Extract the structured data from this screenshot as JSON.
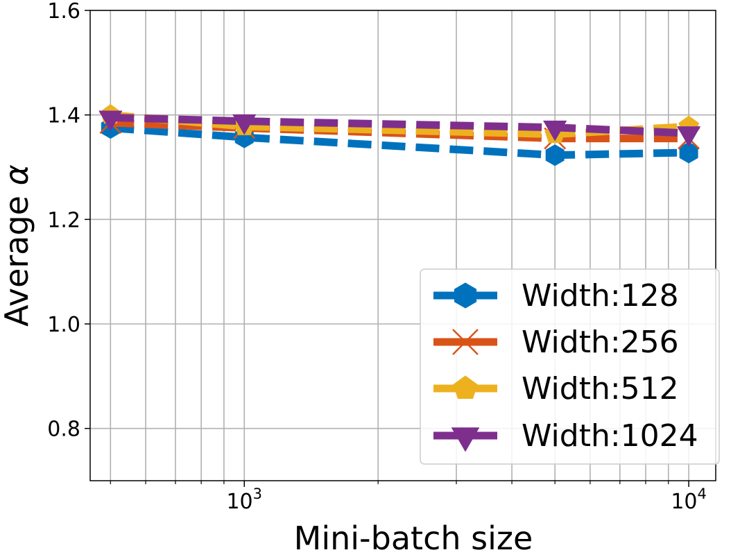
{
  "chart_data": {
    "type": "line",
    "title": "",
    "xlabel": "Mini-batch size",
    "ylabel_prefix": "Average ",
    "ylabel_symbol": "α",
    "xscale": "log",
    "xlim": [
      450,
      11500
    ],
    "ylim": [
      0.7,
      1.6
    ],
    "grid": true,
    "legend_position": "lower-right",
    "x": [
      500,
      1000,
      5000,
      10000
    ],
    "y_ticks": [
      {
        "value": 0.8,
        "label": "0.8"
      },
      {
        "value": 1.0,
        "label": "1.0"
      },
      {
        "value": 1.2,
        "label": "1.2"
      },
      {
        "value": 1.4,
        "label": "1.4"
      },
      {
        "value": 1.6,
        "label": "1.6"
      }
    ],
    "x_major_ticks": [
      {
        "value": 1000,
        "base": "10",
        "exp": "3"
      },
      {
        "value": 10000,
        "base": "10",
        "exp": "4"
      }
    ],
    "x_minor_ticks": [
      500,
      600,
      700,
      800,
      900,
      2000,
      3000,
      4000,
      5000,
      6000,
      7000,
      8000,
      9000
    ],
    "series": [
      {
        "name": "Width:128",
        "color": "#0072bd",
        "marker": "hexagon",
        "values": [
          1.375,
          1.357,
          1.323,
          1.328
        ]
      },
      {
        "name": "Width:256",
        "color": "#d95319",
        "marker": "x",
        "values": [
          1.385,
          1.375,
          1.355,
          1.355
        ]
      },
      {
        "name": "Width:512",
        "color": "#edb120",
        "marker": "pentagon",
        "values": [
          1.4,
          1.378,
          1.363,
          1.378
        ]
      },
      {
        "name": "Width:1024",
        "color": "#7e2f8e",
        "marker": "triangle-down",
        "values": [
          1.395,
          1.388,
          1.376,
          1.365
        ]
      }
    ]
  }
}
